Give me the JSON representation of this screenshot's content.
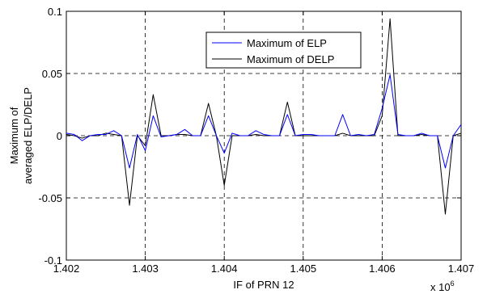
{
  "chart_data": {
    "type": "line",
    "xlabel": "IF of PRN 12",
    "ylabel": [
      "Maximum of",
      "averaged ELP/DELP"
    ],
    "x_scale_base": "x 10",
    "x_scale_exponent": "6",
    "xlim": [
      1.402,
      1.407
    ],
    "ylim": [
      -0.1,
      0.1
    ],
    "xticks": [
      1.402,
      1.403,
      1.404,
      1.405,
      1.406,
      1.407
    ],
    "xtick_labels": [
      "1.402",
      "1.403",
      "1.404",
      "1.405",
      "1.406",
      "1.407"
    ],
    "yticks": [
      -0.1,
      -0.05,
      0,
      0.05,
      0.1
    ],
    "ytick_labels": [
      "-0.1",
      "-0.05",
      "0",
      "0.05",
      "0.1"
    ],
    "grid": "dashed, major ticks",
    "legend_position": "upper-center",
    "series": [
      {
        "name": "Maximum of ELP",
        "color": "#0000ff",
        "x": [
          1.402,
          1.4021,
          1.4022,
          1.4023,
          1.4024,
          1.4025,
          1.4026,
          1.4027,
          1.4028,
          1.4029,
          1.403,
          1.4031,
          1.4032,
          1.4033,
          1.4034,
          1.4035,
          1.4036,
          1.4037,
          1.4038,
          1.4039,
          1.404,
          1.4041,
          1.4042,
          1.4043,
          1.4044,
          1.4045,
          1.4046,
          1.4047,
          1.4048,
          1.4049,
          1.405,
          1.4051,
          1.4052,
          1.4053,
          1.4054,
          1.4055,
          1.4056,
          1.4057,
          1.4058,
          1.4059,
          1.406,
          1.4061,
          1.4062,
          1.4063,
          1.4064,
          1.4065,
          1.4066,
          1.4067,
          1.4068,
          1.4069,
          1.407
        ],
        "y": [
          0.002,
          0.001,
          -0.004,
          0.0,
          0.001,
          0.001,
          0.004,
          0.0,
          -0.026,
          0.001,
          -0.012,
          0.016,
          -0.001,
          0.0,
          0.001,
          0.005,
          0.0,
          0.0,
          0.016,
          0.0,
          -0.014,
          0.002,
          0.0,
          0.0,
          0.004,
          0.001,
          0.0,
          0.0,
          0.017,
          0.0,
          0.001,
          0.001,
          0.0,
          0.0,
          0.0,
          0.017,
          0.0,
          0.001,
          0.0,
          0.001,
          0.022,
          0.049,
          0.001,
          0.0,
          0.0,
          0.002,
          0.0,
          0.0,
          -0.026,
          0.0,
          0.009
        ]
      },
      {
        "name": "Maximum of DELP",
        "color": "#000000",
        "x": [
          1.402,
          1.4021,
          1.4022,
          1.4023,
          1.4024,
          1.4025,
          1.4026,
          1.4027,
          1.4028,
          1.4029,
          1.403,
          1.4031,
          1.4032,
          1.4033,
          1.4034,
          1.4035,
          1.4036,
          1.4037,
          1.4038,
          1.4039,
          1.404,
          1.4041,
          1.4042,
          1.4043,
          1.4044,
          1.4045,
          1.4046,
          1.4047,
          1.4048,
          1.4049,
          1.405,
          1.4051,
          1.4052,
          1.4053,
          1.4054,
          1.4055,
          1.4056,
          1.4057,
          1.4058,
          1.4059,
          1.406,
          1.4061,
          1.4062,
          1.4063,
          1.4064,
          1.4065,
          1.4066,
          1.4067,
          1.4068,
          1.4069,
          1.407
        ],
        "y": [
          0.001,
          0.0,
          -0.002,
          0.0,
          0.0,
          0.002,
          0.001,
          0.0,
          -0.056,
          0.0,
          -0.008,
          0.033,
          0.0,
          0.0,
          0.001,
          0.001,
          0.0,
          0.0,
          0.026,
          0.0,
          -0.04,
          0.0,
          0.0,
          0.0,
          0.001,
          0.0,
          0.0,
          0.0,
          0.027,
          0.0,
          0.0,
          0.0,
          0.0,
          0.0,
          0.0,
          0.002,
          0.0,
          0.0,
          0.0,
          0.0,
          0.016,
          0.094,
          0.0,
          0.0,
          0.0,
          0.001,
          0.0,
          0.0,
          -0.063,
          0.0,
          0.002
        ]
      }
    ]
  }
}
